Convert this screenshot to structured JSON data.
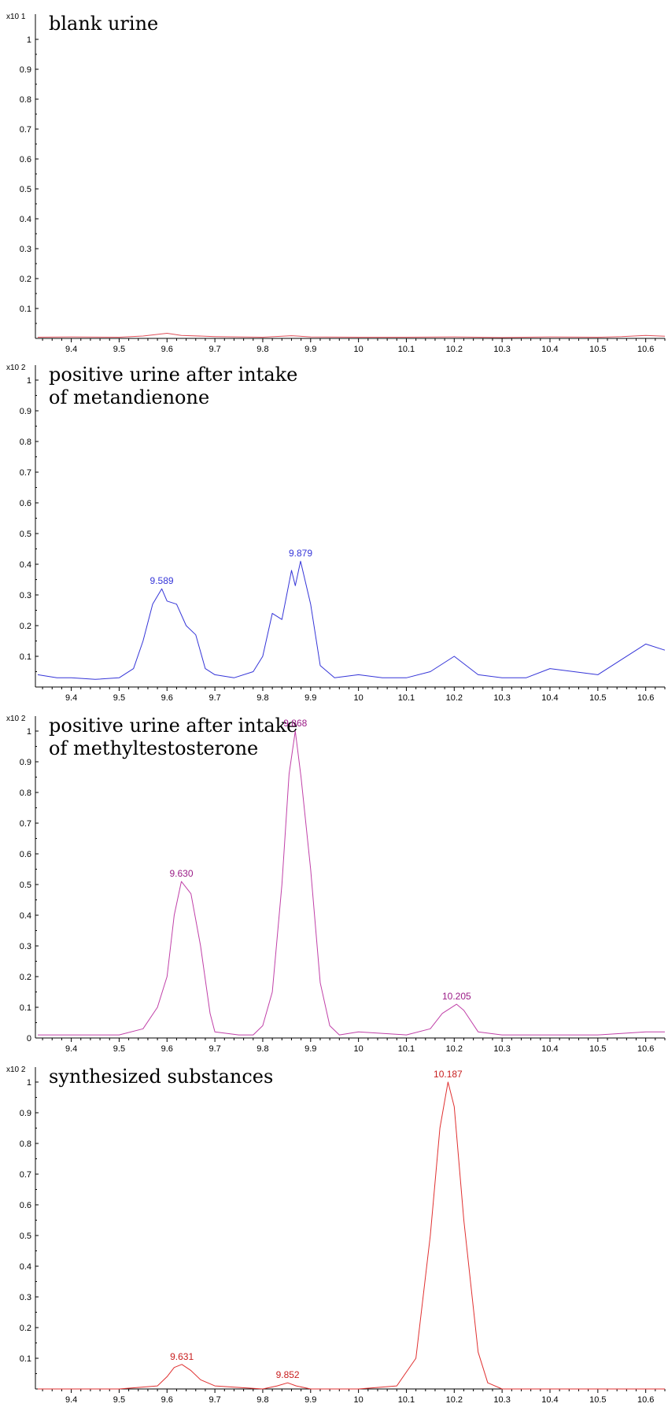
{
  "chart_data": [
    {
      "type": "line",
      "title": "blank urine",
      "subtitle": "",
      "y_multiplier": "x10 1",
      "y_ticks": [
        "1",
        "0.9",
        "0.8",
        "0.7",
        "0.6",
        "0.5",
        "0.4",
        "0.3",
        "0.2",
        "0.1"
      ],
      "x_ticks": [
        "9.4",
        "9.5",
        "9.6",
        "9.7",
        "9.8",
        "9.9",
        "10",
        "10.1",
        "10.2",
        "10.3",
        "10.4",
        "10.5",
        "10.6"
      ],
      "xlim": [
        9.33,
        10.64
      ],
      "ylim": [
        0,
        1.0
      ],
      "color": "#e0505a",
      "series": [
        {
          "x": [
            9.33,
            9.4,
            9.5,
            9.55,
            9.6,
            9.63,
            9.7,
            9.8,
            9.86,
            9.9,
            10.0,
            10.1,
            10.2,
            10.3,
            10.4,
            10.5,
            10.55,
            10.6,
            10.64
          ],
          "values": [
            0.004,
            0.005,
            0.004,
            0.008,
            0.017,
            0.01,
            0.006,
            0.004,
            0.009,
            0.005,
            0.004,
            0.004,
            0.005,
            0.003,
            0.005,
            0.004,
            0.006,
            0.01,
            0.007
          ]
        }
      ],
      "peaks": []
    },
    {
      "type": "line",
      "title": "positive urine after intake",
      "subtitle": "of metandienone",
      "y_multiplier": "x10 2",
      "y_ticks": [
        "1",
        "0.9",
        "0.8",
        "0.7",
        "0.6",
        "0.5",
        "0.4",
        "0.3",
        "0.2",
        "0.1"
      ],
      "x_ticks": [
        "9.4",
        "9.5",
        "9.6",
        "9.7",
        "9.8",
        "9.9",
        "10",
        "10.1",
        "10.2",
        "10.3",
        "10.4",
        "10.5",
        "10.6"
      ],
      "xlim": [
        9.33,
        10.64
      ],
      "ylim": [
        0,
        1.0
      ],
      "color": "#3535d8",
      "series": [
        {
          "x": [
            9.33,
            9.37,
            9.4,
            9.45,
            9.5,
            9.53,
            9.55,
            9.57,
            9.589,
            9.6,
            9.62,
            9.64,
            9.66,
            9.68,
            9.7,
            9.74,
            9.78,
            9.8,
            9.82,
            9.84,
            9.86,
            9.868,
            9.879,
            9.9,
            9.92,
            9.95,
            10.0,
            10.05,
            10.1,
            10.15,
            10.2,
            10.25,
            10.3,
            10.35,
            10.4,
            10.45,
            10.5,
            10.55,
            10.6,
            10.64
          ],
          "values": [
            0.04,
            0.03,
            0.03,
            0.025,
            0.03,
            0.06,
            0.15,
            0.27,
            0.32,
            0.28,
            0.27,
            0.2,
            0.17,
            0.06,
            0.04,
            0.03,
            0.05,
            0.1,
            0.24,
            0.22,
            0.38,
            0.33,
            0.41,
            0.27,
            0.07,
            0.03,
            0.04,
            0.03,
            0.03,
            0.05,
            0.1,
            0.04,
            0.03,
            0.03,
            0.06,
            0.05,
            0.04,
            0.09,
            0.14,
            0.12
          ]
        }
      ],
      "peaks": [
        {
          "x": 9.589,
          "y": 0.32,
          "label": "9.589"
        },
        {
          "x": 9.879,
          "y": 0.41,
          "label": "9.879"
        }
      ]
    },
    {
      "type": "line",
      "title": "positive urine after intake",
      "subtitle": "of methyltestosterone",
      "y_multiplier": "x10 2",
      "y_ticks": [
        "1",
        "0.9",
        "0.8",
        "0.7",
        "0.6",
        "0.5",
        "0.4",
        "0.3",
        "0.2",
        "0.1",
        "0"
      ],
      "x_ticks": [
        "9.4",
        "9.5",
        "9.6",
        "9.7",
        "9.8",
        "9.9",
        "10",
        "10.1",
        "10.2",
        "10.3",
        "10.4",
        "10.5",
        "10.6"
      ],
      "xlim": [
        9.33,
        10.64
      ],
      "ylim": [
        0,
        1.0
      ],
      "color": "#c040a8",
      "label_color": "#9b1c87",
      "series": [
        {
          "x": [
            9.33,
            9.4,
            9.5,
            9.55,
            9.58,
            9.6,
            9.615,
            9.63,
            9.65,
            9.67,
            9.69,
            9.7,
            9.75,
            9.78,
            9.8,
            9.82,
            9.84,
            9.855,
            9.868,
            9.88,
            9.9,
            9.92,
            9.94,
            9.96,
            10.0,
            10.1,
            10.15,
            10.175,
            10.205,
            10.22,
            10.25,
            10.3,
            10.4,
            10.5,
            10.6,
            10.64
          ],
          "values": [
            0.01,
            0.01,
            0.01,
            0.03,
            0.1,
            0.2,
            0.4,
            0.51,
            0.47,
            0.3,
            0.08,
            0.02,
            0.01,
            0.01,
            0.04,
            0.15,
            0.5,
            0.86,
            1.0,
            0.85,
            0.55,
            0.18,
            0.04,
            0.01,
            0.02,
            0.01,
            0.03,
            0.08,
            0.11,
            0.09,
            0.02,
            0.01,
            0.01,
            0.01,
            0.02,
            0.02
          ]
        }
      ],
      "peaks": [
        {
          "x": 9.63,
          "y": 0.51,
          "label": "9.630"
        },
        {
          "x": 9.868,
          "y": 1.0,
          "label": "9.868"
        },
        {
          "x": 10.205,
          "y": 0.11,
          "label": "10.205"
        }
      ]
    },
    {
      "type": "line",
      "title": "synthesized substances",
      "subtitle": "",
      "y_multiplier": "x10 2",
      "y_ticks": [
        "1",
        "0.9",
        "0.8",
        "0.7",
        "0.6",
        "0.5",
        "0.4",
        "0.3",
        "0.2",
        "0.1"
      ],
      "x_ticks": [
        "9.4",
        "9.5",
        "9.6",
        "9.7",
        "9.8",
        "9.9",
        "10",
        "10.1",
        "10.2",
        "10.3",
        "10.4",
        "10.5",
        "10.6"
      ],
      "xlim": [
        9.33,
        10.64
      ],
      "ylim": [
        0,
        1.0
      ],
      "color": "#e03030",
      "label_color": "#c81e1e",
      "series": [
        {
          "x": [
            9.33,
            9.5,
            9.58,
            9.6,
            9.615,
            9.631,
            9.65,
            9.67,
            9.7,
            9.8,
            9.83,
            9.852,
            9.87,
            9.9,
            10.0,
            10.08,
            10.12,
            10.15,
            10.17,
            10.187,
            10.2,
            10.22,
            10.25,
            10.27,
            10.3,
            10.4,
            10.5,
            10.6,
            10.64
          ],
          "values": [
            0.0,
            0.0,
            0.01,
            0.04,
            0.07,
            0.08,
            0.06,
            0.03,
            0.01,
            0.0,
            0.01,
            0.02,
            0.01,
            0.0,
            0.0,
            0.01,
            0.1,
            0.5,
            0.85,
            1.0,
            0.92,
            0.55,
            0.12,
            0.02,
            0.0,
            0.0,
            0.0,
            0.0,
            0.0
          ]
        }
      ],
      "peaks": [
        {
          "x": 9.631,
          "y": 0.08,
          "label": "9.631"
        },
        {
          "x": 9.852,
          "y": 0.02,
          "label": "9.852"
        },
        {
          "x": 10.187,
          "y": 1.0,
          "label": "10.187"
        }
      ]
    }
  ]
}
